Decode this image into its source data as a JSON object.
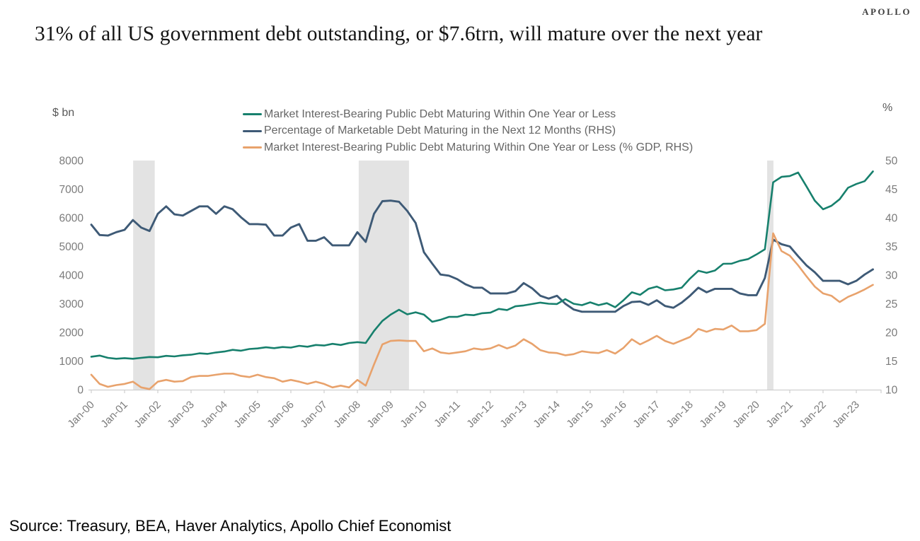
{
  "brand": "APOLLO",
  "title": "31% of all US government debt outstanding, or $7.6trn, will mature over the next year",
  "source": "Source: Treasury, BEA, Haver Analytics, Apollo Chief Economist",
  "chart_data": {
    "type": "line",
    "title": "31% of all US government debt outstanding, or $7.6trn, will mature over the next year",
    "legend_position": "top",
    "grid": false,
    "band_color": "#e3e3e3",
    "left_axis": {
      "label": "$ bn",
      "min": 0,
      "max": 8000,
      "ticks": [
        8000,
        7000,
        6000,
        5000,
        4000,
        3000,
        2000,
        1000,
        0
      ]
    },
    "right_axis": {
      "label": "%",
      "min": 10,
      "max": 50,
      "ticks": [
        50,
        45,
        40,
        35,
        30,
        25,
        20,
        15,
        10
      ]
    },
    "x_axis": {
      "start_year": 2000,
      "points_per_year": 4,
      "tick_labels": [
        "Jan-00",
        "Jan-01",
        "Jan-02",
        "Jan-03",
        "Jan-04",
        "Jan-05",
        "Jan-06",
        "Jan-07",
        "Jan-08",
        "Jan-09",
        "Jan-10",
        "Jan-11",
        "Jan-12",
        "Jan-13",
        "Jan-14",
        "Jan-15",
        "Jan-16",
        "Jan-17",
        "Jan-18",
        "Jan-19",
        "Jan-20",
        "Jan-21",
        "Jan-22",
        "Jan-23"
      ]
    },
    "recession_bands": [
      {
        "from": 1.26,
        "to": 1.91
      },
      {
        "from": 8.04,
        "to": 9.55
      },
      {
        "from": 20.32,
        "to": 20.51
      }
    ],
    "series": [
      {
        "id": "debt-maturing-1y",
        "name": "Market Interest-Bearing Public Debt Maturing Within One Year or Less",
        "axis": "left",
        "color": "#17806d",
        "width": 2.6,
        "values": [
          1150,
          1190,
          1110,
          1080,
          1100,
          1080,
          1110,
          1140,
          1130,
          1180,
          1160,
          1200,
          1220,
          1270,
          1250,
          1300,
          1330,
          1390,
          1360,
          1420,
          1440,
          1480,
          1450,
          1490,
          1470,
          1530,
          1500,
          1560,
          1540,
          1600,
          1560,
          1630,
          1660,
          1630,
          2050,
          2400,
          2620,
          2790,
          2630,
          2700,
          2620,
          2370,
          2440,
          2540,
          2540,
          2620,
          2600,
          2670,
          2690,
          2820,
          2780,
          2910,
          2940,
          2990,
          3040,
          3000,
          2990,
          3160,
          3000,
          2950,
          3050,
          2950,
          3020,
          2880,
          3120,
          3400,
          3310,
          3520,
          3600,
          3470,
          3500,
          3560,
          3880,
          4150,
          4080,
          4160,
          4395,
          4400,
          4500,
          4560,
          4720,
          4900,
          7240,
          7430,
          7460,
          7580,
          7100,
          6600,
          6300,
          6420,
          6650,
          7050,
          7180,
          7280,
          7620
        ]
      },
      {
        "id": "pct-marketable-next-12m",
        "name": "Percentage of Marketable Debt Maturing in the Next 12 Months (RHS)",
        "axis": "right",
        "color": "#3e5a76",
        "width": 2.9,
        "values": [
          38.8,
          37.0,
          36.9,
          37.5,
          37.9,
          39.6,
          38.3,
          37.7,
          40.7,
          42.0,
          40.6,
          40.4,
          41.2,
          42.0,
          42.0,
          40.7,
          42.0,
          41.5,
          40.1,
          38.9,
          38.9,
          38.8,
          36.9,
          36.9,
          38.3,
          38.9,
          36.0,
          36.0,
          36.6,
          35.2,
          35.2,
          35.2,
          37.5,
          35.8,
          40.7,
          42.9,
          43.0,
          42.8,
          41.2,
          39.1,
          34.0,
          32.0,
          30.1,
          29.9,
          29.3,
          28.4,
          27.8,
          27.8,
          26.8,
          26.8,
          26.8,
          27.2,
          28.6,
          27.7,
          26.4,
          25.9,
          26.4,
          25.0,
          24.0,
          23.6,
          23.6,
          23.6,
          23.6,
          23.6,
          24.6,
          25.3,
          25.4,
          24.8,
          25.6,
          24.6,
          24.3,
          25.2,
          26.4,
          27.8,
          27.0,
          27.6,
          27.6,
          27.6,
          26.8,
          26.5,
          26.5,
          29.5,
          36.2,
          35.4,
          35.0,
          33.3,
          31.7,
          30.5,
          29.0,
          29.0,
          29.0,
          28.4,
          29.0,
          30.1,
          31.0
        ]
      },
      {
        "id": "debt-maturing-1y-pct-gdp",
        "name": "Market Interest-Bearing Public Debt Maturing Within One Year or Less (% GDP, RHS)",
        "axis": "right",
        "color": "#e8a26c",
        "width": 2.6,
        "values": [
          12.6,
          11.0,
          10.5,
          10.8,
          11.0,
          11.4,
          10.4,
          10.1,
          11.4,
          11.7,
          11.4,
          11.5,
          12.2,
          12.4,
          12.4,
          12.6,
          12.8,
          12.8,
          12.4,
          12.2,
          12.6,
          12.2,
          12.0,
          11.4,
          11.7,
          11.4,
          11.0,
          11.4,
          11.0,
          10.4,
          10.7,
          10.4,
          11.7,
          10.7,
          14.4,
          17.9,
          18.5,
          18.6,
          18.5,
          18.5,
          16.7,
          17.2,
          16.5,
          16.3,
          16.5,
          16.7,
          17.2,
          17.0,
          17.2,
          17.8,
          17.2,
          17.7,
          18.8,
          18.0,
          16.9,
          16.5,
          16.4,
          16.0,
          16.2,
          16.7,
          16.5,
          16.4,
          16.9,
          16.3,
          17.3,
          18.8,
          17.9,
          18.6,
          19.4,
          18.5,
          18.0,
          18.6,
          19.2,
          20.6,
          20.1,
          20.6,
          20.5,
          21.2,
          20.2,
          20.2,
          20.4,
          21.5,
          37.3,
          34.2,
          33.4,
          31.7,
          29.8,
          28.0,
          26.8,
          26.4,
          25.3,
          26.2,
          26.8,
          27.5,
          28.3
        ]
      }
    ]
  }
}
